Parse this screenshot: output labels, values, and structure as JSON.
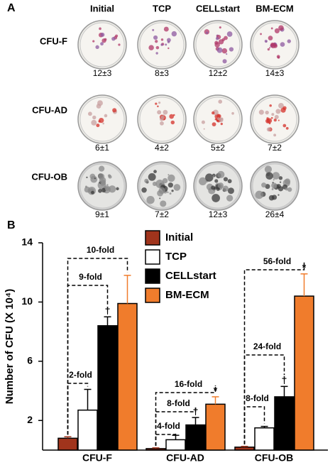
{
  "panel_a": {
    "label": "A",
    "columns": [
      "Initial",
      "TCP",
      "CELLstart",
      "BM-ECM"
    ],
    "rows": [
      {
        "label": "CFU-F",
        "counts": [
          "12±3",
          "8±3",
          "12±2",
          "14±3"
        ]
      },
      {
        "label": "CFU-AD",
        "counts": [
          "6±1",
          "4±2",
          "5±2",
          "7±2"
        ]
      },
      {
        "label": "CFU-OB",
        "counts": [
          "9±1",
          "7±2",
          "12±3",
          "26±4"
        ]
      }
    ]
  },
  "chart_data": {
    "type": "bar",
    "panel_label": "B",
    "y_label": "Number of CFU (X 10⁴)",
    "categories": [
      "CFU-F",
      "CFU-AD",
      "CFU-OB"
    ],
    "series": [
      {
        "name": "Initial",
        "color": "#a0341c",
        "values": [
          0.8,
          0.1,
          0.2
        ],
        "errors": [
          0.1,
          0.05,
          0.05
        ],
        "markers": [
          null,
          null,
          null
        ]
      },
      {
        "name": "TCP",
        "color": "#ffffff",
        "values": [
          2.7,
          0.7,
          1.5
        ],
        "errors": [
          1.4,
          0.3,
          0.1
        ],
        "markers": [
          null,
          null,
          null
        ]
      },
      {
        "name": "CELLstart",
        "color": "#000000",
        "values": [
          8.4,
          1.7,
          3.6
        ],
        "errors": [
          0.6,
          0.5,
          0.7
        ],
        "markers": [
          "†",
          "†",
          "†"
        ]
      },
      {
        "name": "BM-ECM",
        "color": "#f07c2c",
        "values": [
          9.9,
          3.1,
          10.4
        ],
        "errors": [
          1.9,
          0.5,
          1.5
        ],
        "markers": [
          null,
          "*",
          "*"
        ]
      }
    ],
    "annotations": [
      "10-fold",
      "9-fold",
      "2-fold",
      "16-fold",
      "8-fold",
      "4-fold",
      "56-fold",
      "24-fold",
      "8-fold"
    ],
    "ylim": [
      0,
      14
    ],
    "yticks": [
      2,
      6,
      10,
      14
    ],
    "grid": false
  }
}
